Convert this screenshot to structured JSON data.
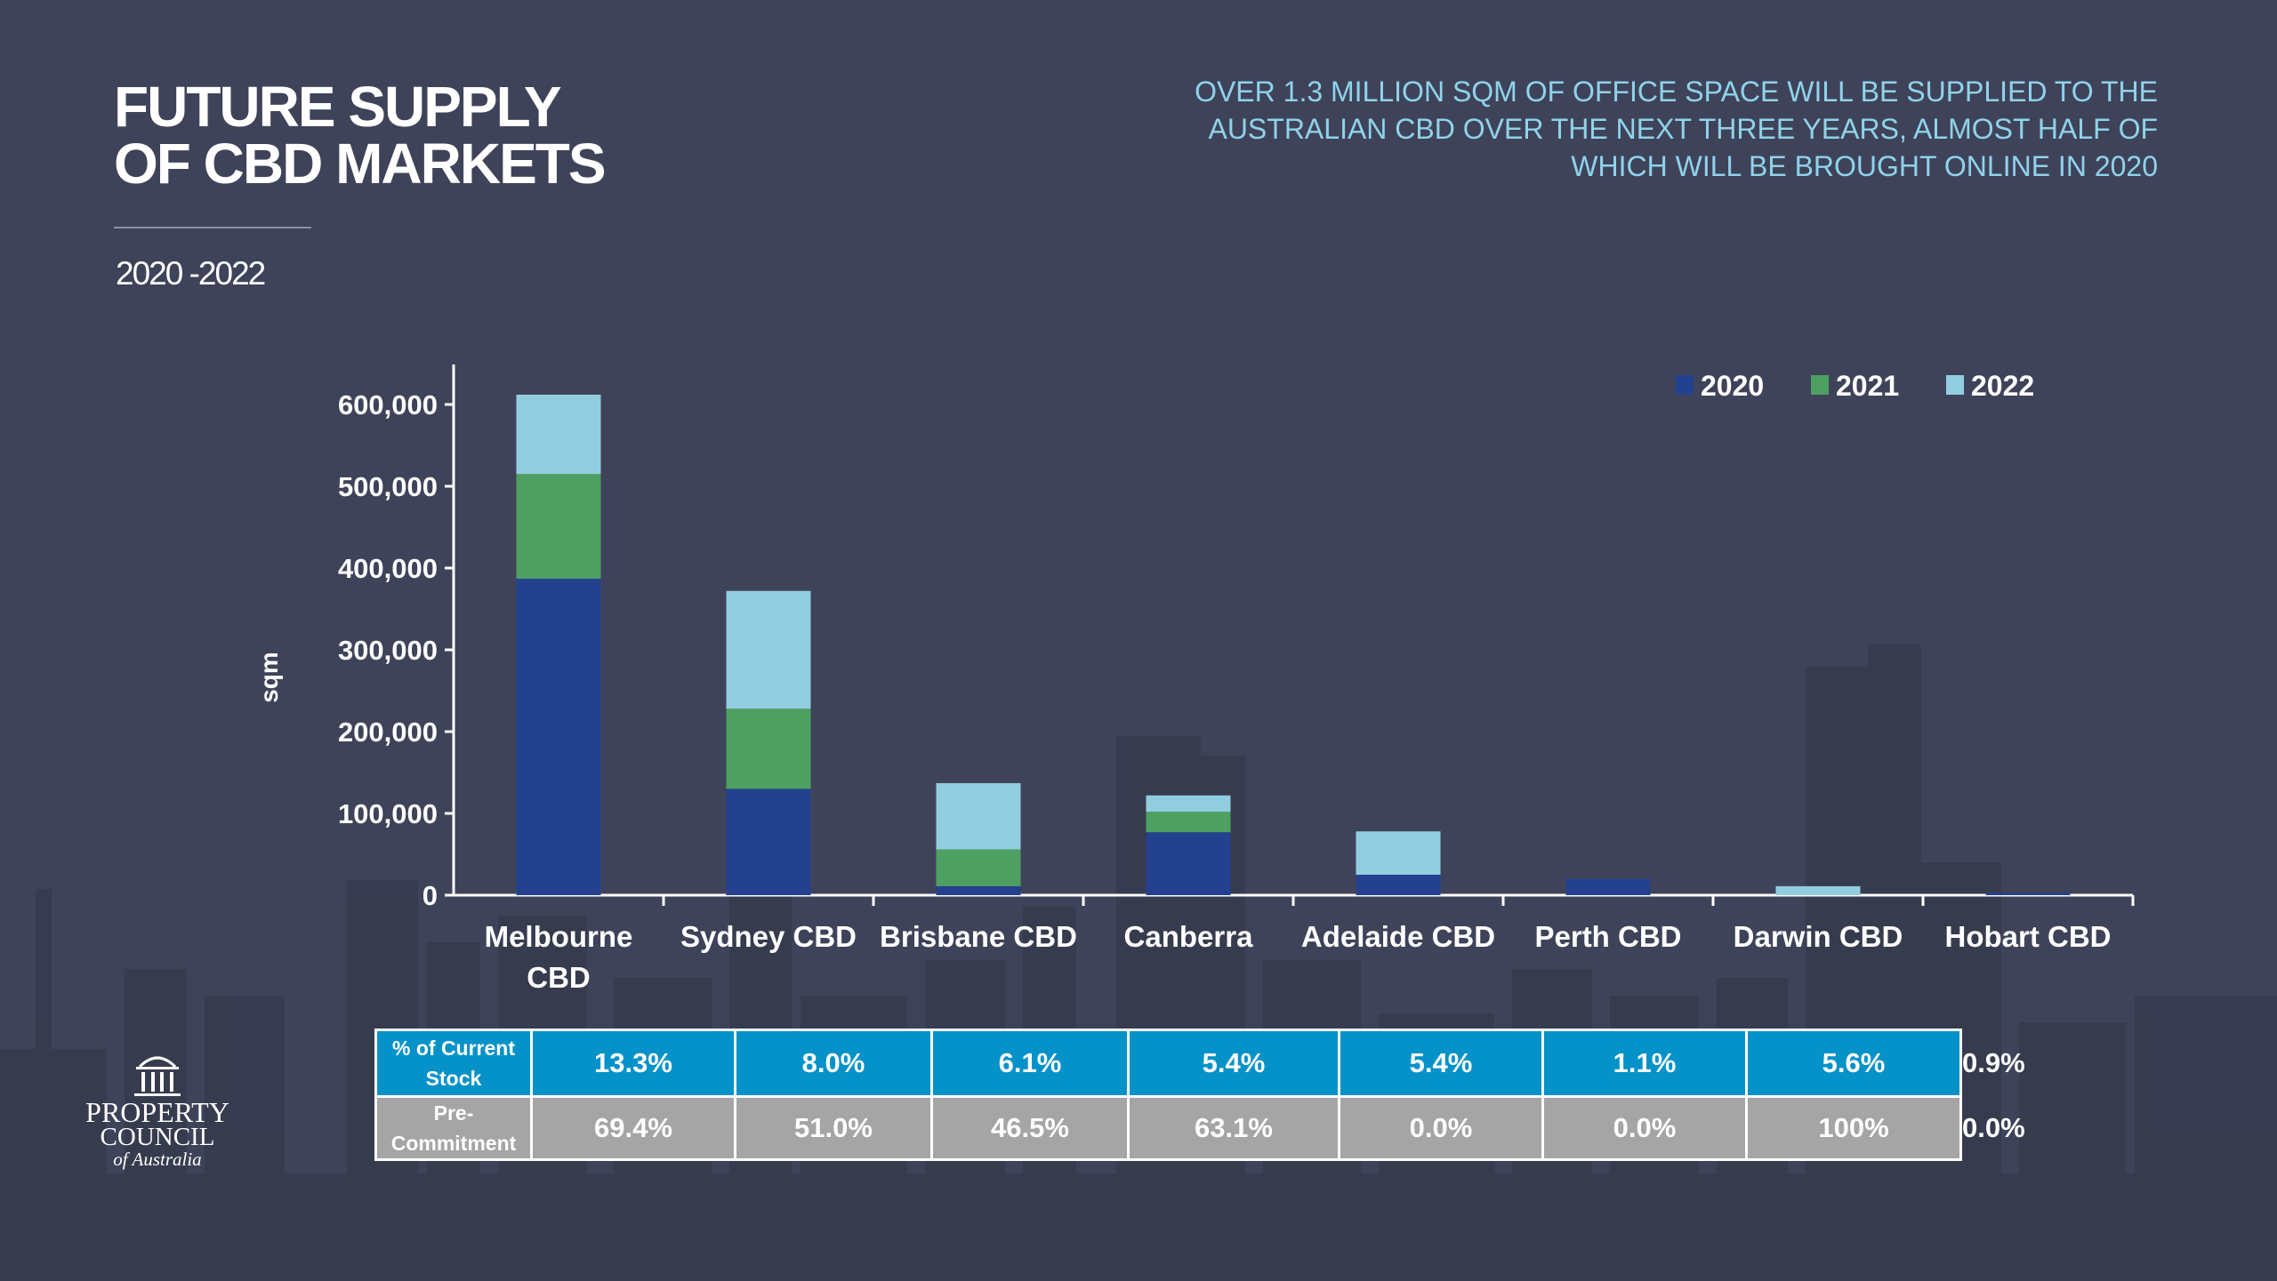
{
  "header": {
    "title_line1": "FUTURE SUPPLY",
    "title_line2": "OF CBD MARKETS",
    "date_range": "2020 -2022",
    "headline_line1": "OVER 1.3 MILLION SQM OF OFFICE SPACE WILL BE SUPPLIED TO THE",
    "headline_line2": "AUSTRALIAN CBD OVER THE NEXT THREE YEARS, ALMOST HALF OF",
    "headline_line3": "WHICH WILL BE BROUGHT ONLINE IN 2020"
  },
  "chart_data": {
    "type": "bar",
    "stacked": true,
    "title": "",
    "xlabel": "",
    "ylabel": "sqm",
    "ylim": [
      0,
      650000
    ],
    "yticks": [
      0,
      100000,
      200000,
      300000,
      400000,
      500000,
      600000
    ],
    "ytick_labels": [
      "0",
      "100,000",
      "200,000",
      "300,000",
      "400,000",
      "500,000",
      "600,000"
    ],
    "categories": [
      [
        "Melbourne",
        "CBD"
      ],
      [
        "Sydney CBD"
      ],
      [
        "Brisbane CBD"
      ],
      [
        "Canberra"
      ],
      [
        "Adelaide CBD"
      ],
      [
        "Perth CBD"
      ],
      [
        "Darwin CBD"
      ],
      [
        "Hobart CBD"
      ]
    ],
    "series": [
      {
        "name": "2020",
        "color": "#24418f",
        "values": [
          387000,
          130000,
          11000,
          77000,
          25000,
          20000,
          0,
          3000
        ]
      },
      {
        "name": "2021",
        "color": "#4da062",
        "values": [
          128000,
          98000,
          45000,
          25000,
          0,
          0,
          0,
          0
        ]
      },
      {
        "name": "2022",
        "color": "#92cddf",
        "values": [
          97000,
          144000,
          81000,
          20000,
          53000,
          0,
          11000,
          0
        ]
      }
    ],
    "legend_position": "top-right",
    "grid": false
  },
  "table": {
    "rows": [
      {
        "label_line1": "% of Current",
        "label_line2": "Stock",
        "values": [
          "13.3%",
          "8.0%",
          "6.1%",
          "5.4%",
          "5.4%",
          "1.1%",
          "5.6%",
          "0.9%"
        ]
      },
      {
        "label_line1": "Pre-",
        "label_line2": "Commitment",
        "values": [
          "69.4%",
          "51.0%",
          "46.5%",
          "63.1%",
          "0.0%",
          "0.0%",
          "100%",
          "0.0%"
        ]
      }
    ]
  },
  "logo": {
    "line1": "PROPERTY",
    "line2": "COUNCIL",
    "line3": "of Australia"
  },
  "colors": {
    "background": "#3f4359",
    "headline": "#8fd3ea",
    "table_row1": "#0592c9",
    "table_row2": "#a5a5a5"
  }
}
